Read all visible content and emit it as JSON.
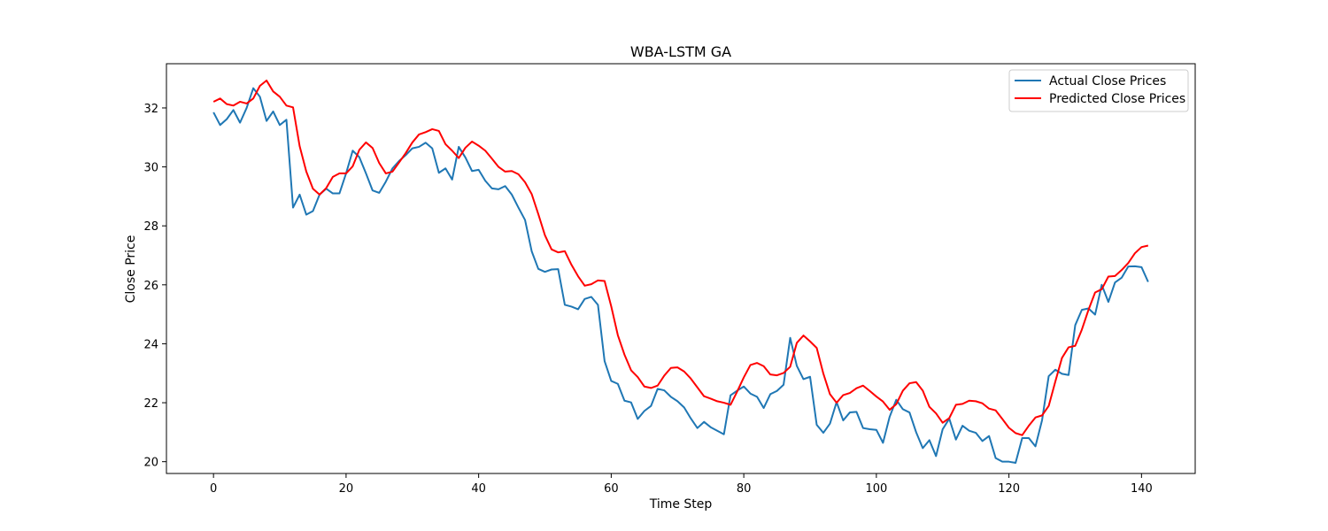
{
  "chart_data": {
    "type": "line",
    "title": "WBA-LSTM GA",
    "xlabel": "Time Step",
    "ylabel": "Close Price",
    "xlim": [
      -7.1,
      148.1
    ],
    "ylim": [
      19.6,
      33.5
    ],
    "xticks": [
      0,
      20,
      40,
      60,
      80,
      100,
      120,
      140
    ],
    "yticks": [
      20,
      22,
      24,
      26,
      28,
      30,
      32
    ],
    "grid": false,
    "legend_position": "top-right",
    "series": [
      {
        "name": "Actual Close Prices",
        "color": "#1f77b4",
        "values": [
          31.85,
          31.42,
          31.62,
          31.93,
          31.5,
          32.0,
          32.67,
          32.38,
          31.56,
          31.88,
          31.42,
          31.6,
          28.62,
          29.06,
          28.38,
          28.5,
          29.06,
          29.26,
          29.1,
          29.1,
          29.78,
          30.55,
          30.33,
          29.78,
          29.2,
          29.12,
          29.5,
          29.95,
          30.2,
          30.4,
          30.63,
          30.68,
          30.82,
          30.63,
          29.8,
          29.95,
          29.57,
          30.68,
          30.32,
          29.86,
          29.9,
          29.53,
          29.27,
          29.24,
          29.35,
          29.06,
          28.62,
          28.2,
          27.14,
          26.54,
          26.44,
          26.52,
          26.53,
          25.32,
          25.26,
          25.17,
          25.52,
          25.59,
          25.32,
          23.41,
          22.74,
          22.64,
          22.07,
          22.01,
          21.45,
          21.72,
          21.89,
          22.47,
          22.42,
          22.2,
          22.05,
          21.84,
          21.47,
          21.14,
          21.35,
          21.17,
          21.05,
          20.93,
          22.25,
          22.41,
          22.55,
          22.31,
          22.2,
          21.82,
          22.29,
          22.4,
          22.61,
          24.2,
          23.25,
          22.8,
          22.88,
          21.25,
          20.98,
          21.29,
          22.02,
          21.4,
          21.67,
          21.69,
          21.14,
          21.1,
          21.08,
          20.64,
          21.52,
          22.1,
          21.78,
          21.67,
          21.0,
          20.46,
          20.73,
          20.19,
          21.1,
          21.46,
          20.75,
          21.22,
          21.05,
          20.98,
          20.7,
          20.87,
          20.12,
          20.0,
          20.0,
          19.96,
          20.8,
          20.8,
          20.52,
          21.41,
          22.9,
          23.12,
          22.98,
          22.94,
          24.63,
          25.15,
          25.2,
          24.99,
          26.0,
          25.42,
          26.08,
          26.24,
          26.62,
          26.63,
          26.6,
          26.1
        ]
      },
      {
        "name": "Predicted Close Prices",
        "color": "#ff0000",
        "values": [
          32.21,
          32.32,
          32.13,
          32.08,
          32.21,
          32.15,
          32.32,
          32.75,
          32.93,
          32.56,
          32.38,
          32.08,
          32.02,
          30.7,
          29.84,
          29.26,
          29.06,
          29.28,
          29.66,
          29.78,
          29.78,
          30.02,
          30.58,
          30.83,
          30.64,
          30.13,
          29.78,
          29.84,
          30.15,
          30.47,
          30.83,
          31.1,
          31.18,
          31.28,
          31.22,
          30.77,
          30.55,
          30.3,
          30.65,
          30.86,
          30.72,
          30.55,
          30.28,
          30.0,
          29.84,
          29.86,
          29.75,
          29.48,
          29.08,
          28.4,
          27.68,
          27.2,
          27.1,
          27.14,
          26.68,
          26.29,
          25.97,
          26.02,
          26.15,
          26.13,
          25.27,
          24.29,
          23.63,
          23.1,
          22.87,
          22.55,
          22.5,
          22.58,
          22.92,
          23.18,
          23.2,
          23.06,
          22.82,
          22.52,
          22.22,
          22.14,
          22.05,
          22.0,
          21.93,
          22.38,
          22.86,
          23.28,
          23.35,
          23.24,
          22.96,
          22.93,
          23.01,
          23.22,
          24.03,
          24.28,
          24.08,
          23.86,
          22.99,
          22.29,
          22.0,
          22.26,
          22.33,
          22.49,
          22.58,
          22.4,
          22.21,
          22.04,
          21.76,
          21.95,
          22.41,
          22.66,
          22.7,
          22.41,
          21.86,
          21.64,
          21.32,
          21.48,
          21.93,
          21.96,
          22.07,
          22.05,
          21.98,
          21.8,
          21.74,
          21.45,
          21.15,
          20.97,
          20.9,
          21.22,
          21.5,
          21.57,
          21.89,
          22.72,
          23.52,
          23.88,
          23.93,
          24.48,
          25.15,
          25.74,
          25.85,
          26.28,
          26.3,
          26.5,
          26.74,
          27.07,
          27.28,
          27.33
        ]
      }
    ]
  }
}
